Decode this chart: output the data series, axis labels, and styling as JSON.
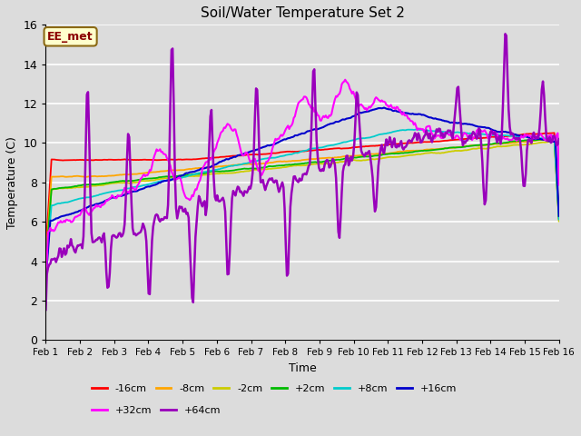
{
  "title": "Soil/Water Temperature Set 2",
  "xlabel": "Time",
  "ylabel": "Temperature (C)",
  "ylim": [
    0,
    16
  ],
  "yticks": [
    0,
    2,
    4,
    6,
    8,
    10,
    12,
    14,
    16
  ],
  "annotation_text": "EE_met",
  "annotation_color": "#8B0000",
  "annotation_bg": "#FFFFCC",
  "annotation_border": "#8B6914",
  "bg_color": "#DCDCDC",
  "grid_color": "#FFFFFF",
  "series": {
    "neg16cm": {
      "color": "#FF0000",
      "label": "-16cm"
    },
    "neg8cm": {
      "color": "#FFA500",
      "label": "-8cm"
    },
    "neg2cm": {
      "color": "#CCCC00",
      "label": "-2cm"
    },
    "pos2cm": {
      "color": "#00BB00",
      "label": "+2cm"
    },
    "pos8cm": {
      "color": "#00CCCC",
      "label": "+8cm"
    },
    "pos16cm": {
      "color": "#0000CC",
      "label": "+16cm"
    },
    "pos32cm": {
      "color": "#FF00FF",
      "label": "+32cm"
    },
    "pos64cm": {
      "color": "#9900BB",
      "label": "+64cm"
    }
  },
  "x_start": 1,
  "x_end": 16,
  "n_points": 450,
  "xtick_labels": [
    "Feb 1",
    "Feb 2",
    "Feb 3",
    "Feb 4",
    "Feb 5",
    "Feb 6",
    "Feb 7",
    "Feb 8",
    "Feb 9",
    "Feb 10",
    "Feb 11",
    "Feb 12",
    "Feb 13",
    "Feb 14",
    "Feb 15",
    "Feb 16"
  ],
  "xtick_positions": [
    1,
    2,
    3,
    4,
    5,
    6,
    7,
    8,
    9,
    10,
    11,
    12,
    13,
    14,
    15,
    16
  ],
  "legend_row1": [
    "-16cm",
    "-8cm",
    "-2cm",
    "+2cm",
    "+8cm",
    "+16cm"
  ],
  "legend_row1_colors": [
    "#FF0000",
    "#FFA500",
    "#CCCC00",
    "#00BB00",
    "#00CCCC",
    "#0000CC"
  ],
  "legend_row2": [
    "+32cm",
    "+64cm"
  ],
  "legend_row2_colors": [
    "#FF00FF",
    "#9900BB"
  ]
}
